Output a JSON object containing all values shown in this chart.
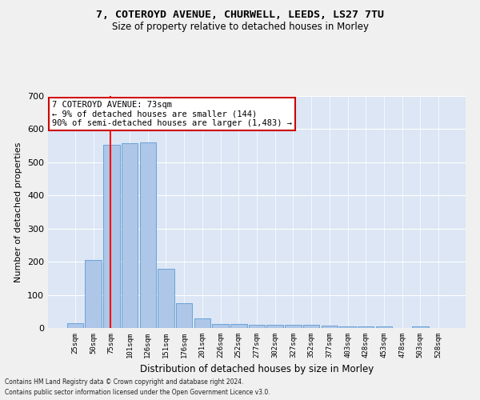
{
  "title1": "7, COTEROYD AVENUE, CHURWELL, LEEDS, LS27 7TU",
  "title2": "Size of property relative to detached houses in Morley",
  "xlabel": "Distribution of detached houses by size in Morley",
  "ylabel": "Number of detached properties",
  "bin_labels": [
    "25sqm",
    "50sqm",
    "75sqm",
    "101sqm",
    "126sqm",
    "151sqm",
    "176sqm",
    "201sqm",
    "226sqm",
    "252sqm",
    "277sqm",
    "302sqm",
    "327sqm",
    "352sqm",
    "377sqm",
    "403sqm",
    "428sqm",
    "453sqm",
    "478sqm",
    "503sqm",
    "528sqm"
  ],
  "bar_heights": [
    14,
    204,
    553,
    557,
    559,
    178,
    76,
    29,
    13,
    13,
    10,
    10,
    10,
    10,
    7,
    4,
    4,
    4,
    1,
    5,
    1
  ],
  "bar_color": "#aec6e8",
  "bar_edge_color": "#5b9bd5",
  "background_color": "#dce6f5",
  "fig_background": "#f0f0f0",
  "grid_color": "#ffffff",
  "vline_color": "#ff0000",
  "vline_xindex": 1.93,
  "annotation_text": "7 COTEROYD AVENUE: 73sqm\n← 9% of detached houses are smaller (144)\n90% of semi-detached houses are larger (1,483) →",
  "annotation_box_facecolor": "#ffffff",
  "annotation_box_edgecolor": "#cc0000",
  "ylim": [
    0,
    700
  ],
  "yticks": [
    0,
    100,
    200,
    300,
    400,
    500,
    600,
    700
  ],
  "footnote1": "Contains HM Land Registry data © Crown copyright and database right 2024.",
  "footnote2": "Contains public sector information licensed under the Open Government Licence v3.0."
}
